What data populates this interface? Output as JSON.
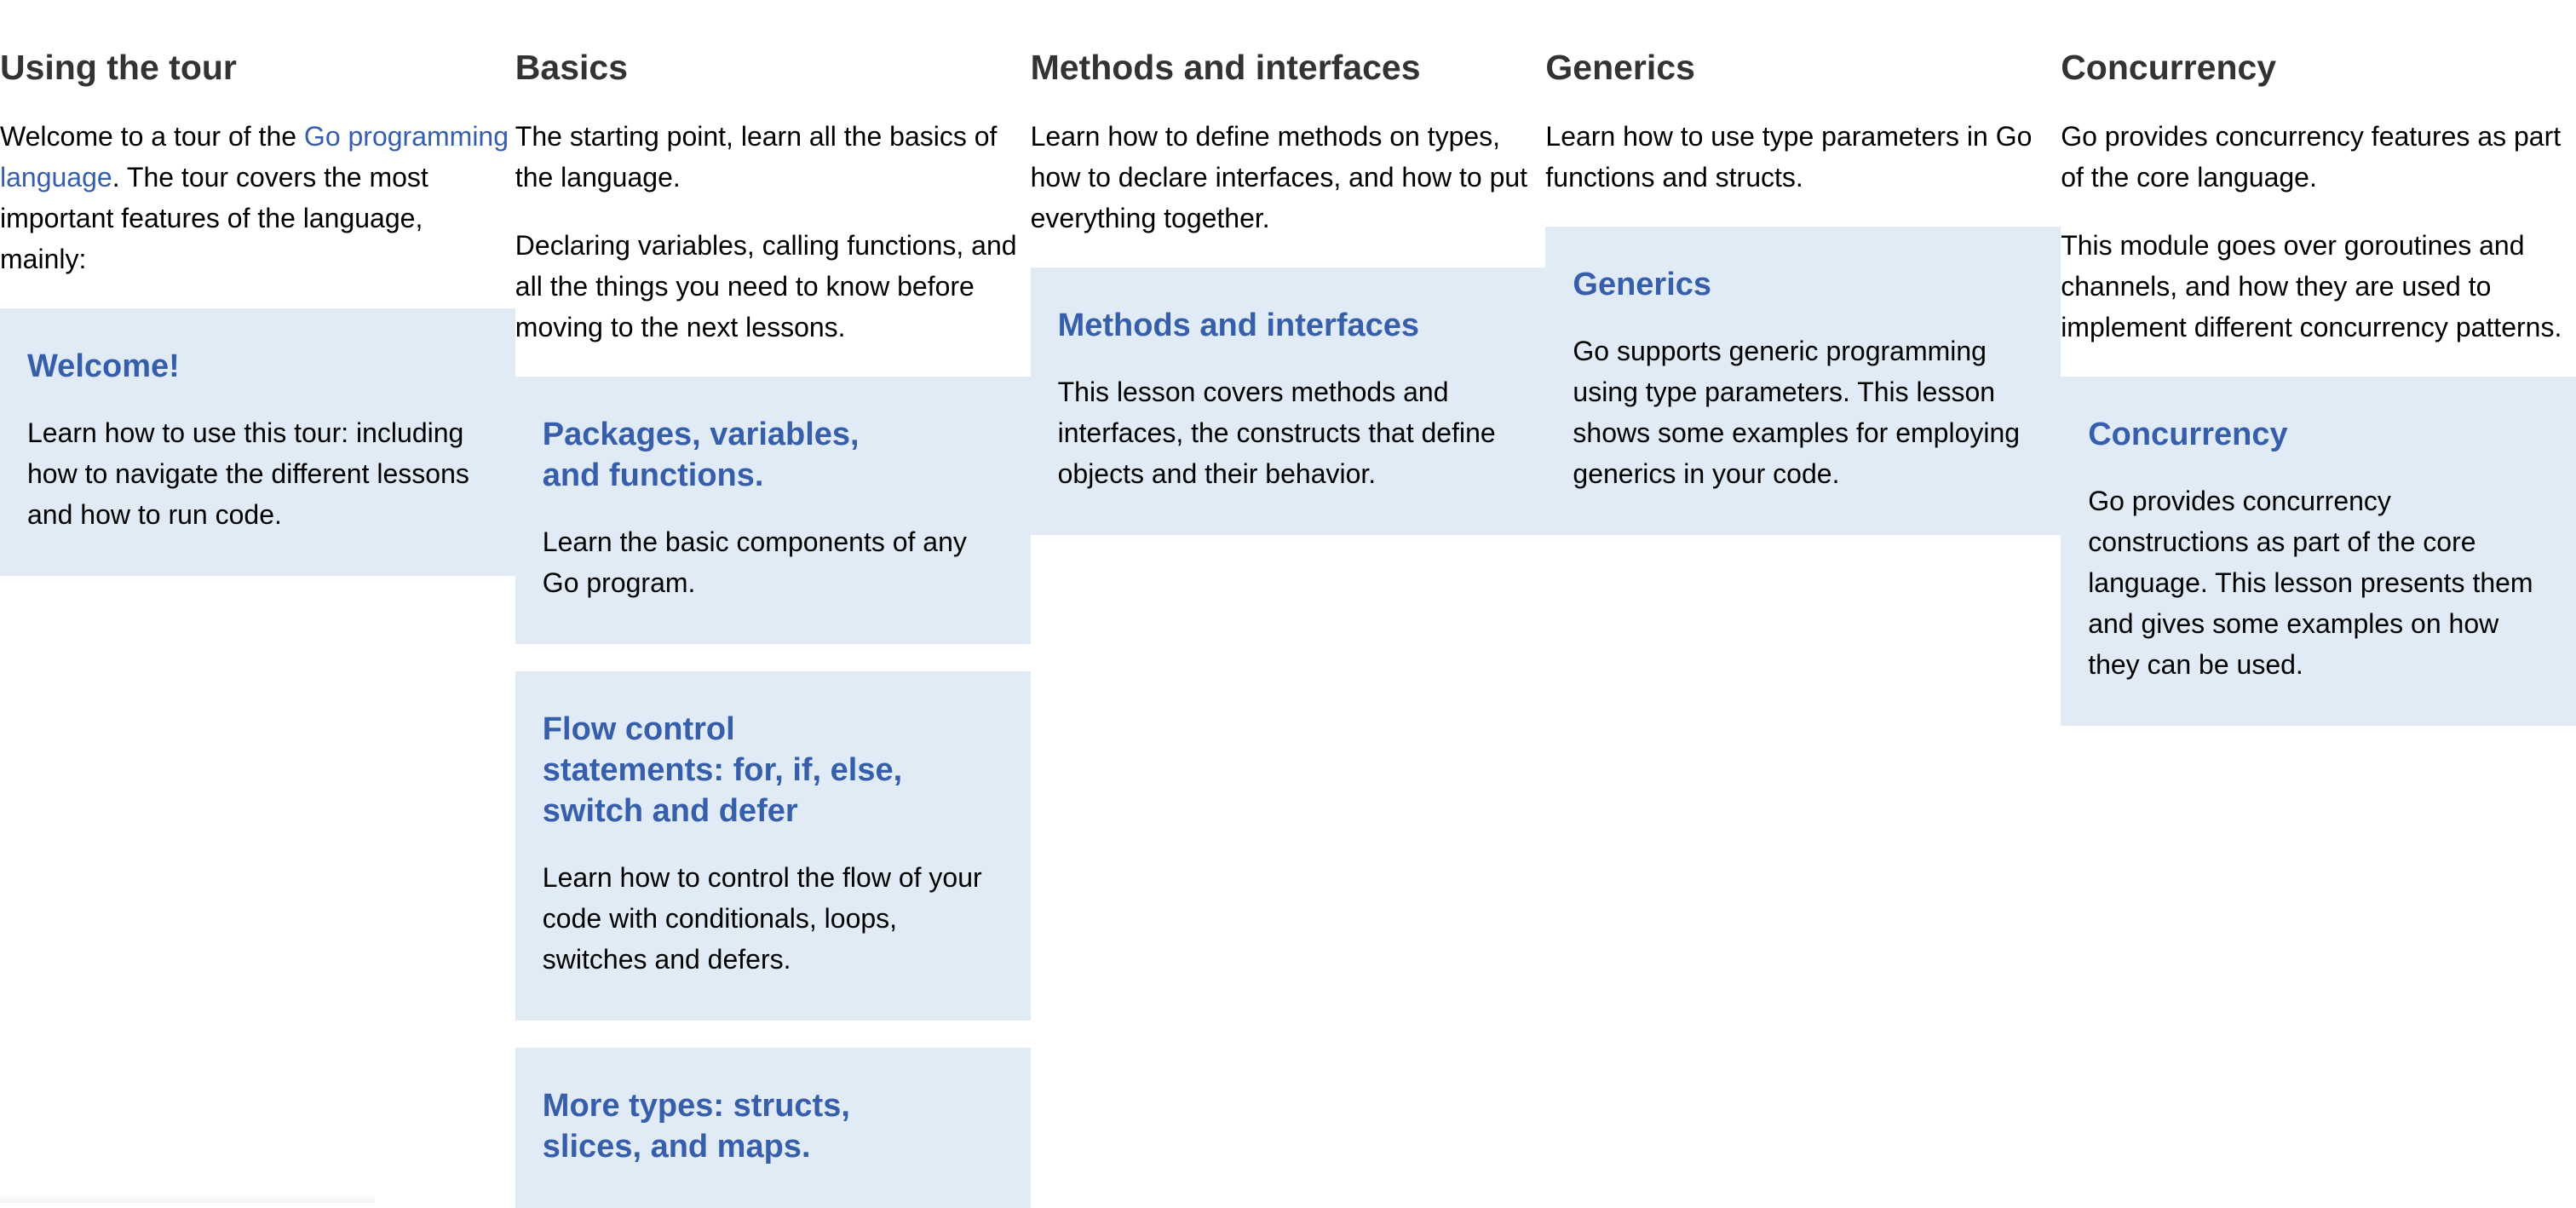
{
  "columns": [
    {
      "title": "Using the tour",
      "intro_before_link": "Welcome to a tour of the ",
      "intro_link": "Go programming language",
      "intro_after_link": ". The tour covers the most important features of the language, mainly:",
      "cards": [
        {
          "title": "Welcome!",
          "description": "Learn how to use this tour: including how to navigate the different lessons and how to run code."
        }
      ]
    },
    {
      "title": "Basics",
      "paragraphs": [
        "The starting point, learn all the basics of the language.",
        "Declaring variables, calling functions, and all the things you need to know before moving to the next lessons."
      ],
      "cards": [
        {
          "title": "Packages, variables, and functions.",
          "description": "Learn the basic components of any Go program."
        },
        {
          "title": "Flow control statements: for, if, else, switch and defer",
          "description": "Learn how to control the flow of your code with conditionals, loops, switches and defers."
        },
        {
          "title": "More types: structs, slices, and maps.",
          "description": ""
        }
      ]
    },
    {
      "title": "Methods and interfaces",
      "paragraphs": [
        "Learn how to define methods on types, how to declare interfaces, and how to put everything together."
      ],
      "cards": [
        {
          "title": "Methods and interfaces",
          "description": "This lesson covers methods and interfaces, the constructs that define objects and their behavior."
        }
      ]
    },
    {
      "title": "Generics",
      "paragraphs": [
        "Learn how to use type parameters in Go functions and structs."
      ],
      "cards": [
        {
          "title": "Generics",
          "description": "Go supports generic programming using type parameters. This lesson shows some examples for employing generics in your code."
        }
      ]
    },
    {
      "title": "Concurrency",
      "paragraphs": [
        "Go provides concurrency features as part of the core language.",
        "This module goes over goroutines and channels, and how they are used to implement different concurrency patterns."
      ],
      "cards": [
        {
          "title": "Concurrency",
          "description": "Go provides concurrency constructions as part of the core language. This lesson presents them and gives some examples on how they can be used."
        }
      ]
    }
  ],
  "colors": {
    "card_background": "#e0ebf5",
    "link": "#375eab",
    "heading": "#333333"
  }
}
